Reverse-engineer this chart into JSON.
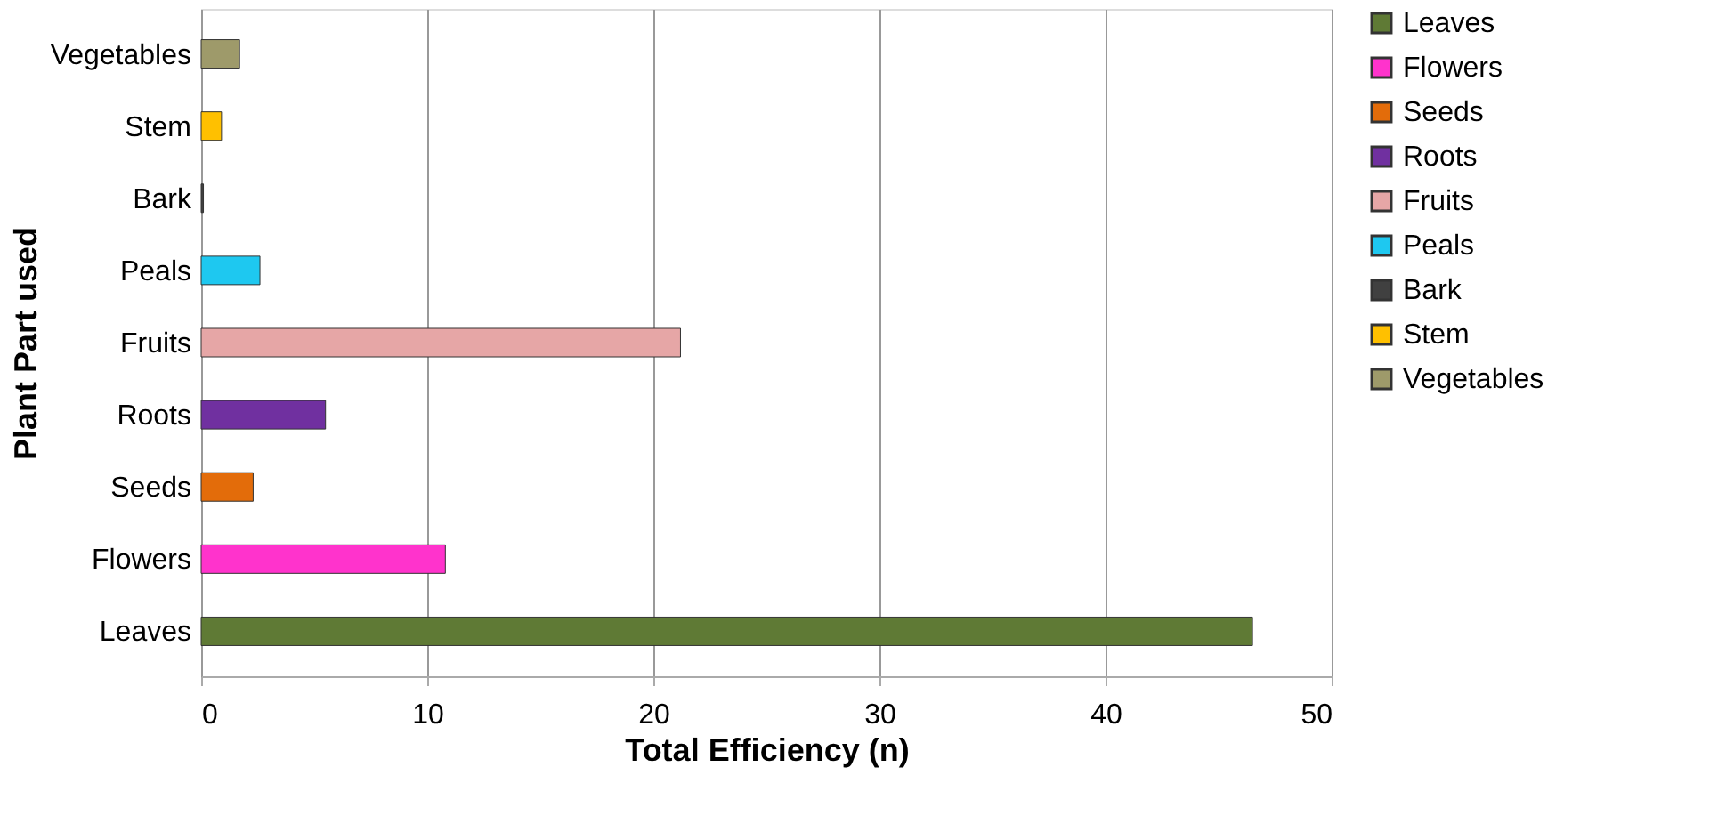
{
  "chart_data": {
    "type": "bar",
    "orientation": "horizontal",
    "xlabel": "Total Efficiency (n)",
    "ylabel": "Plant Part used",
    "categories": [
      "Vegetables",
      "Stem",
      "Bark",
      "Peals",
      "Fruits",
      "Roots",
      "Seeds",
      "Flowers",
      "Leaves"
    ],
    "series": [
      {
        "name": "Leaves",
        "color": "#5f7a35",
        "values": [
          null,
          null,
          null,
          null,
          null,
          null,
          null,
          null,
          46.5
        ]
      },
      {
        "name": "Flowers",
        "color": "#ff33cc",
        "values": [
          null,
          null,
          null,
          null,
          null,
          null,
          null,
          10.8,
          null
        ]
      },
      {
        "name": "Seeds",
        "color": "#e36c0a",
        "values": [
          null,
          null,
          null,
          null,
          null,
          null,
          2.3,
          null,
          null
        ]
      },
      {
        "name": "Roots",
        "color": "#7030a0",
        "values": [
          null,
          null,
          null,
          null,
          null,
          5.5,
          null,
          null,
          null
        ]
      },
      {
        "name": "Fruits",
        "color": "#e6a6a6",
        "values": [
          null,
          null,
          null,
          null,
          21.2,
          null,
          null,
          null,
          null
        ]
      },
      {
        "name": "Peals",
        "color": "#1ec8f0",
        "values": [
          null,
          null,
          null,
          2.6,
          null,
          null,
          null,
          null,
          null
        ]
      },
      {
        "name": "Bark",
        "color": "#404040",
        "values": [
          null,
          null,
          0.1,
          null,
          null,
          null,
          null,
          null,
          null
        ]
      },
      {
        "name": "Stem",
        "color": "#ffc000",
        "values": [
          null,
          0.9,
          null,
          null,
          null,
          null,
          null,
          null,
          null
        ]
      },
      {
        "name": "Vegetables",
        "color": "#9e9a6a",
        "values": [
          1.7,
          null,
          null,
          null,
          null,
          null,
          null,
          null,
          null
        ]
      }
    ],
    "xlim": [
      0,
      50
    ],
    "xticks": [
      0,
      10,
      20,
      30,
      40,
      50
    ],
    "grid": "x",
    "legend": "right"
  }
}
